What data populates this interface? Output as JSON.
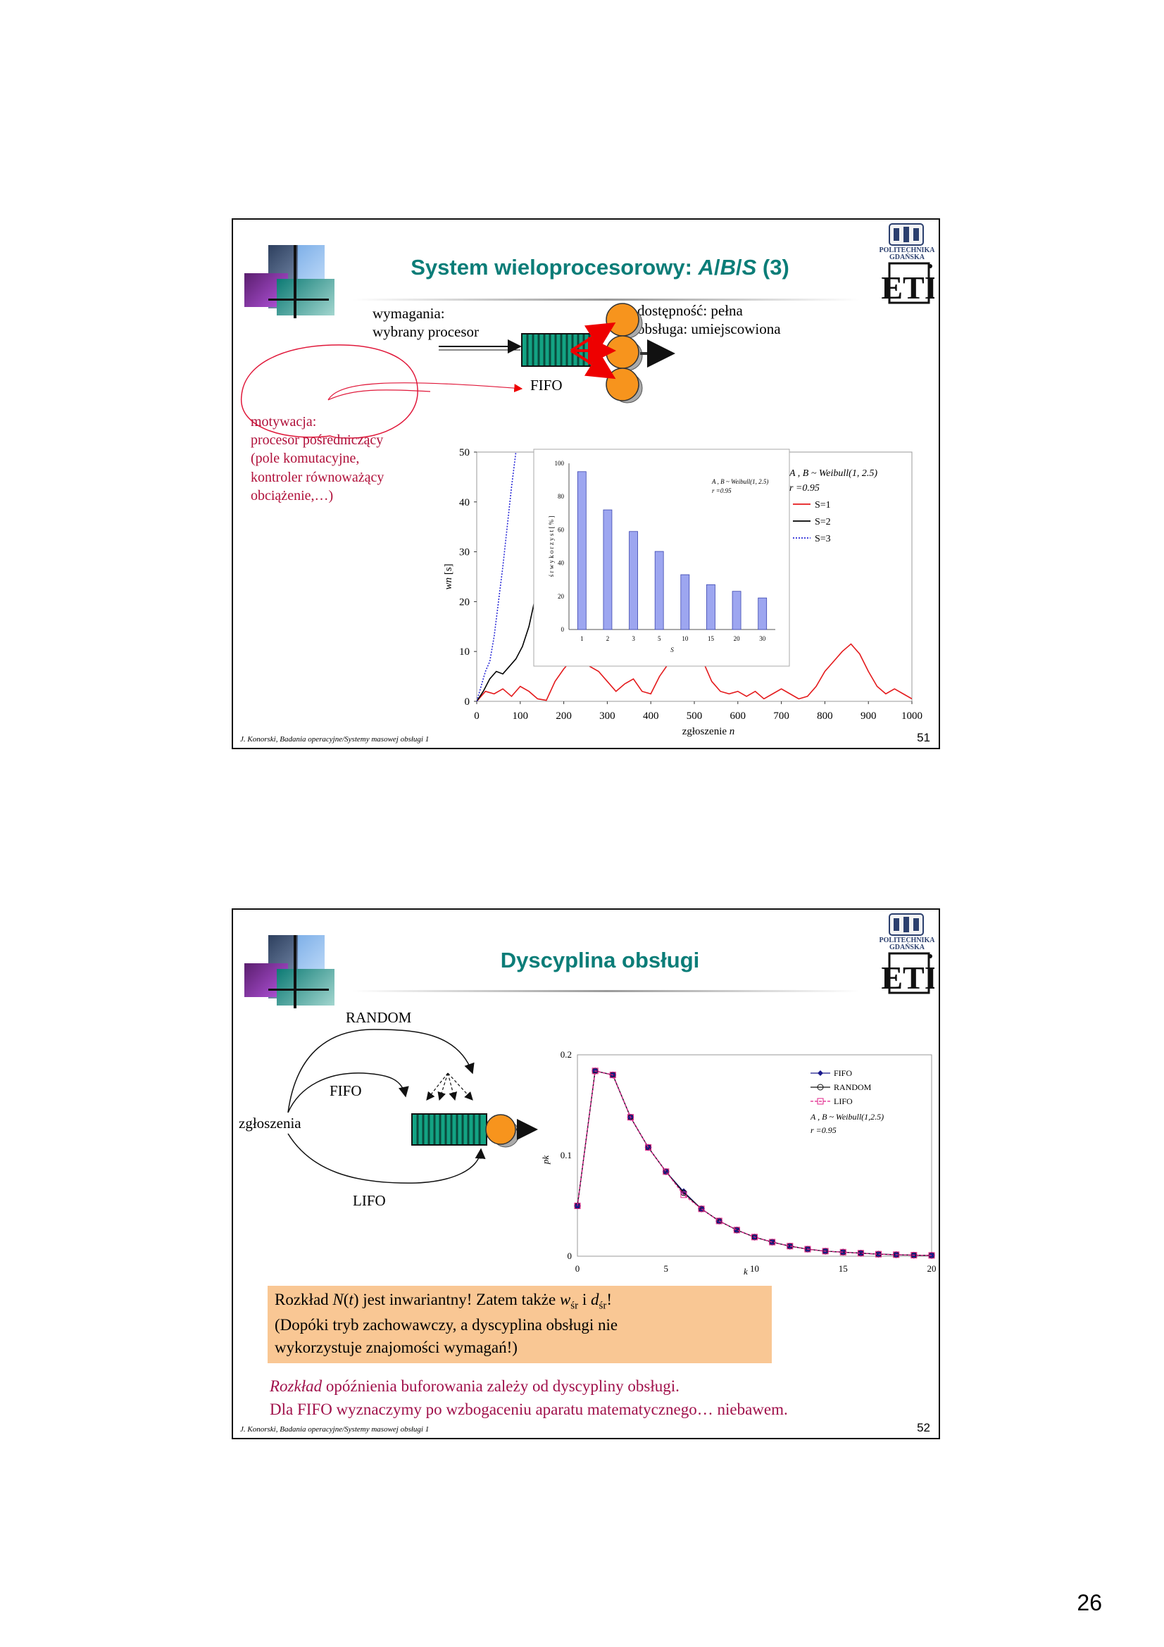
{
  "page_number": "26",
  "slide1": {
    "title_prefix": "System wieloprocesorowy: ",
    "title_A": "A",
    "title_slash1": "/",
    "title_B": "B",
    "title_slash2": "/",
    "title_S": "S",
    "title_suffix": " (3)",
    "req_line1": "wymagania:",
    "req_line2": "wybrany procesor",
    "avail_line1": "dostępność: pełna",
    "avail_line2": "obsługa: umiejscowiona",
    "fifo_label": "FIFO",
    "motivation": [
      "motywacja:",
      "procesor pośredniczący",
      "(pole komutacyjne,",
      " kontroler równoważący",
      " obciążenie,…)"
    ],
    "footer": "J. Konorski, Badania operacyjne/Systemy masowej obsługi 1",
    "slide_number": "51"
  },
  "slide2": {
    "title": "Dyscyplina obsługi",
    "random_label": "RANDOM",
    "fifo_label": "FIFO",
    "lifo_label": "LIFO",
    "arrivals_label": "zgłoszenia",
    "note_l1_a": "Rozkład ",
    "note_l1_b": "N",
    "note_l1_c": "(",
    "note_l1_d": "t",
    "note_l1_e": ") jest inwariantny! Zatem także ",
    "note_l1_f": "w",
    "note_l1_g": "śr",
    "note_l1_h": " i ",
    "note_l1_i": "d",
    "note_l1_j": "śr",
    "note_l1_k": "!",
    "note_l2": "(Dopóki tryb zachowawczy, a dyscyplina obsługi nie",
    "note_l3": "wykorzystuje znajomości wymagań!)",
    "bottom_l1_a": "Rozkład",
    "bottom_l1_b": " opóźnienia buforowania zależy od dyscypliny obsługi.",
    "bottom_l2": "Dla FIFO wyznaczymy po wzbogaceniu aparatu matematycznego… niebawem.",
    "footer": "J. Konorski, Badania operacyjne/Systemy masowej obsługi 1",
    "slide_number": "52"
  },
  "logo": {
    "line1": "POLITECHNIKA",
    "line2": "GDAŃSKA",
    "mark": "ETI"
  },
  "colors": {
    "title": "#0b7d78",
    "red_text": "#b0103a",
    "note_bg": "#f9c794",
    "bar": "#9da6f0",
    "queue": "#13a383",
    "server": "#f7941d"
  },
  "chart_data": [
    {
      "id": "waiting-time-chart",
      "type": "line",
      "xlabel_a": "zgłoszenie ",
      "xlabel_b": "n",
      "ylabel_a": "wn",
      "ylabel_b": " [s]",
      "xlim": [
        0,
        1000
      ],
      "ylim": [
        0,
        50
      ],
      "xticks": [
        "0",
        "100",
        "200",
        "300",
        "400",
        "500",
        "600",
        "700",
        "800",
        "900",
        "1000"
      ],
      "yticks": [
        "0",
        "10",
        "20",
        "30",
        "40",
        "50"
      ],
      "legend_title_1": "A , B ~  Weibull(1, 2.5)",
      "legend_title_2": "r =0.95",
      "series": [
        {
          "name": "S=1",
          "color": "#e41a1c",
          "style": "solid",
          "x": [
            0,
            20,
            40,
            60,
            80,
            100,
            120,
            140,
            160,
            180,
            200,
            220,
            240,
            260,
            280,
            300,
            320,
            340,
            360,
            380,
            400,
            420,
            440,
            460,
            480,
            500,
            520,
            540,
            560,
            580,
            600,
            620,
            640,
            660,
            680,
            700,
            720,
            740,
            760,
            780,
            800,
            820,
            840,
            860,
            880,
            900,
            920,
            940,
            960,
            980,
            1000
          ],
          "y": [
            0,
            2,
            1.5,
            2.5,
            1,
            3,
            2,
            0.5,
            0.2,
            4,
            6.5,
            8.5,
            9,
            7,
            6,
            4,
            2,
            3.5,
            4.5,
            2,
            1.5,
            5,
            7.5,
            9.5,
            12,
            10,
            8,
            4,
            2,
            1.5,
            2,
            1,
            2,
            0.5,
            1.5,
            2.5,
            1.5,
            0.5,
            1,
            3,
            6,
            8,
            10,
            11.5,
            9.5,
            6,
            3,
            1.5,
            2.5,
            1.5,
            0.5
          ]
        },
        {
          "name": "S=2",
          "color": "#000000",
          "style": "solid",
          "x": [
            0,
            15,
            30,
            45,
            60,
            75,
            90,
            105,
            120,
            135,
            150,
            165,
            180
          ],
          "y": [
            0,
            2,
            4.5,
            6,
            5.5,
            7,
            8.5,
            11,
            15,
            21,
            28,
            36,
            50
          ]
        },
        {
          "name": "S=3",
          "color": "#2a2ad6",
          "style": "dotted",
          "x": [
            0,
            10,
            20,
            30,
            40,
            50,
            60,
            70,
            80,
            90
          ],
          "y": [
            0,
            3,
            6,
            8,
            13,
            20,
            27,
            35,
            43,
            50
          ]
        }
      ]
    },
    {
      "id": "utilization-chart",
      "type": "bar",
      "title_1": "A , B ~ Weibull(1, 2.5)",
      "title_2": "r =0.95",
      "ylabel": "ś r   w y k o r z y s t  [ % ]",
      "xlabel": "S",
      "ylim": [
        0,
        100
      ],
      "yticks": [
        "0",
        "20",
        "40",
        "60",
        "80",
        "100"
      ],
      "categories": [
        "1",
        "2",
        "3",
        "5",
        "10",
        "15",
        "20",
        "30"
      ],
      "values": [
        95,
        72,
        59,
        47,
        33,
        27,
        23,
        19
      ]
    },
    {
      "id": "queue-distribution-chart",
      "type": "line",
      "xlabel": "k",
      "ylabel": "pk",
      "xlim": [
        0,
        20
      ],
      "ylim": [
        0,
        0.2
      ],
      "xticks": [
        "0",
        "5",
        "10",
        "15",
        "20"
      ],
      "yticks": [
        "0",
        "0.1",
        "0.2"
      ],
      "legend_note_1": "A , B ~  Weibull(1,2.5)",
      "legend_note_2": "r =0.95",
      "k": [
        0,
        1,
        2,
        3,
        4,
        5,
        6,
        7,
        8,
        9,
        10,
        11,
        12,
        13,
        14,
        15,
        16,
        17,
        18,
        19,
        20
      ],
      "series": [
        {
          "name": "FIFO",
          "color": "#1a1a8c",
          "marker": "diamond",
          "values": [
            0.05,
            0.184,
            0.18,
            0.138,
            0.108,
            0.084,
            0.064,
            0.047,
            0.035,
            0.026,
            0.019,
            0.014,
            0.01,
            0.007,
            0.005,
            0.004,
            0.003,
            0.002,
            0.0015,
            0.001,
            0.0008
          ]
        },
        {
          "name": "RANDOM",
          "color": "#111111",
          "marker": "circle",
          "values": [
            0.05,
            0.184,
            0.18,
            0.138,
            0.108,
            0.084,
            0.063,
            0.047,
            0.035,
            0.026,
            0.019,
            0.014,
            0.01,
            0.007,
            0.005,
            0.004,
            0.003,
            0.002,
            0.0015,
            0.001,
            0.0008
          ]
        },
        {
          "name": "LIFO",
          "color": "#e0218a",
          "marker": "square",
          "values": [
            0.05,
            0.184,
            0.18,
            0.138,
            0.108,
            0.084,
            0.061,
            0.047,
            0.035,
            0.026,
            0.019,
            0.014,
            0.01,
            0.007,
            0.005,
            0.004,
            0.003,
            0.002,
            0.0015,
            0.001,
            0.0008
          ]
        }
      ]
    }
  ]
}
